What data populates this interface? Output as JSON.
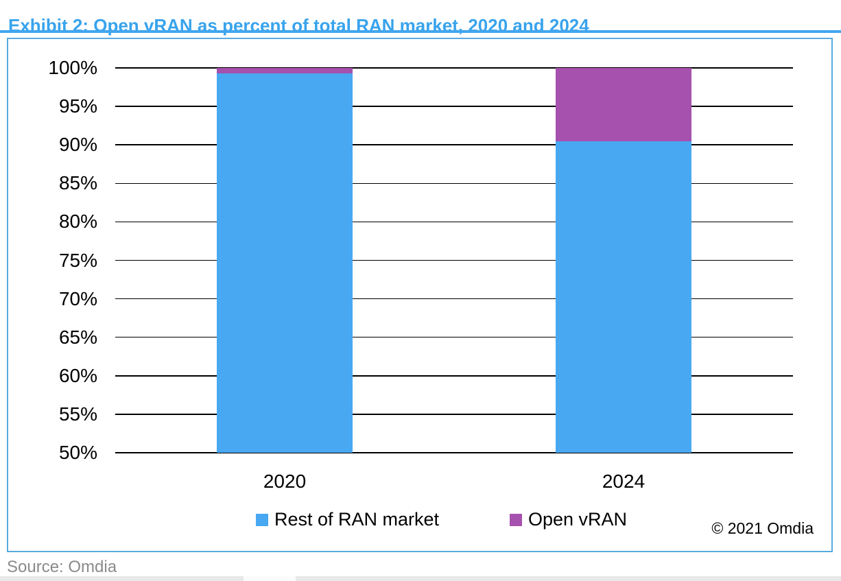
{
  "page": {
    "title": "Exhibit 2: Open vRAN as percent of total RAN market, 2020 and 2024",
    "source": "Source: Omdia",
    "copyright": "© 2021 Omdia"
  },
  "colors": {
    "title_text": "#38a3ec",
    "title_rule": "#42a6ee",
    "chart_border": "#58abe0",
    "gridline": "#000000",
    "rest_of_ran_blue": "#48a8f2",
    "open_vran_purple": "#a551ad",
    "axis_text": "#000000",
    "source_text": "#8a8a8a"
  },
  "chart_data": {
    "type": "bar",
    "stacked": true,
    "title": "Exhibit 2: Open vRAN as percent of total RAN market, 2020 and 2024",
    "categories": [
      "2020",
      "2024"
    ],
    "series": [
      {
        "name": "Rest of RAN market",
        "values": [
          99.3,
          90.5
        ],
        "color": "#48a8f2"
      },
      {
        "name": "Open vRAN",
        "values": [
          0.7,
          9.5
        ],
        "color": "#a551ad"
      }
    ],
    "units": "percent of total RAN market",
    "ylim": [
      50,
      100
    ],
    "ytick_step": 5,
    "yticks": [
      "50%",
      "55%",
      "60%",
      "65%",
      "70%",
      "75%",
      "80%",
      "85%",
      "90%",
      "95%",
      "100%"
    ],
    "xlabel": "",
    "ylabel": "",
    "grid": "horizontal",
    "legend_position": "bottom",
    "annotations": [
      "© 2021 Omdia"
    ]
  }
}
